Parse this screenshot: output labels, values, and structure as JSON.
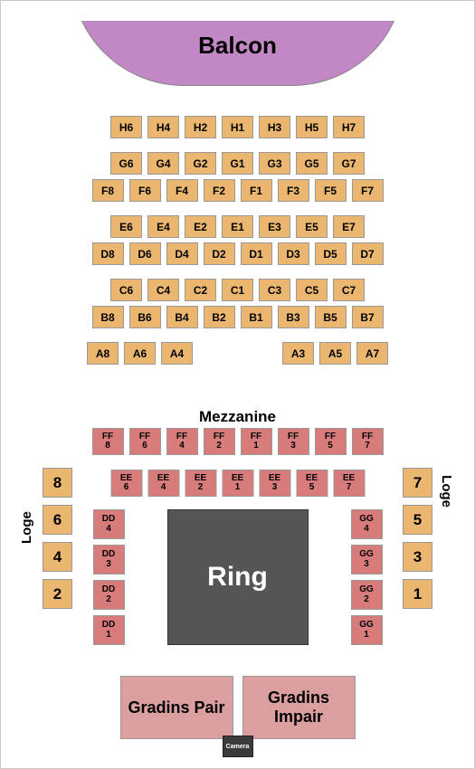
{
  "colors": {
    "balcon": "#c287c5",
    "upper_seat": "#eab670",
    "ringside": "#d77b7b",
    "loge": "#eab670",
    "ring": "#555555",
    "gradins": "#dc9f9f",
    "camera_bg": "#3b3b3b"
  },
  "balcon": "Balcon",
  "mezzanine_label": "Mezzanine",
  "loge_label": "Loge",
  "ring_label": "Ring",
  "camera_label": "Camera",
  "gradins": {
    "pair": "Gradins Pair",
    "impair": "Gradins Impair"
  },
  "upper": {
    "H": [
      "H6",
      "H4",
      "H2",
      "H1",
      "H3",
      "H5",
      "H7"
    ],
    "G": [
      "G6",
      "G4",
      "G2",
      "G1",
      "G3",
      "G5",
      "G7"
    ],
    "F": [
      "F8",
      "F6",
      "F4",
      "F2",
      "F1",
      "F3",
      "F5",
      "F7"
    ],
    "E": [
      "E6",
      "E4",
      "E2",
      "E1",
      "E3",
      "E5",
      "E7"
    ],
    "D": [
      "D8",
      "D6",
      "D4",
      "D2",
      "D1",
      "D3",
      "D5",
      "D7"
    ],
    "C": [
      "C6",
      "C4",
      "C2",
      "C1",
      "C3",
      "C5",
      "C7"
    ],
    "B": [
      "B8",
      "B6",
      "B4",
      "B2",
      "B1",
      "B3",
      "B5",
      "B7"
    ],
    "A_left": [
      "A8",
      "A6",
      "A4"
    ],
    "A_right": [
      "A3",
      "A5",
      "A7"
    ]
  },
  "ff": [
    "FF 8",
    "FF 6",
    "FF 4",
    "FF 2",
    "FF 1",
    "FF 3",
    "FF 5",
    "FF 7"
  ],
  "ee": [
    "EE 6",
    "EE 4",
    "EE 2",
    "EE 1",
    "EE 3",
    "EE 5",
    "EE 7"
  ],
  "dd": [
    "DD 4",
    "DD 3",
    "DD 2",
    "DD 1"
  ],
  "gg": [
    "GG 4",
    "GG 3",
    "GG 2",
    "GG 1"
  ],
  "loge_left": [
    "8",
    "6",
    "4",
    "2"
  ],
  "loge_right": [
    "7",
    "5",
    "3",
    "1"
  ]
}
